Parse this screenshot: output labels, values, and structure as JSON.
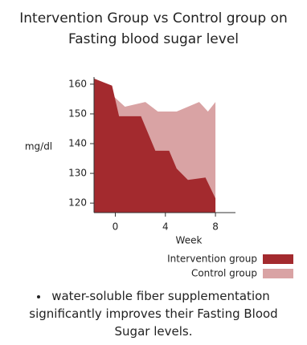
{
  "chart_data": {
    "type": "area",
    "title": "Intervention Group vs Control group on Fasting blood sugar level",
    "x_label": "Week",
    "y_label": "mg/dl",
    "xlim": [
      -1.7,
      9.6
    ],
    "xticks": [
      0,
      4,
      8
    ],
    "ylim": [
      116.8,
      162.4
    ],
    "yticks": [
      120,
      130,
      140,
      150,
      160
    ],
    "series": [
      {
        "name": "Control group",
        "color": "#d9a3a4",
        "x": [
          -1.7,
          0.77,
          2.4,
          3.4,
          4.9,
          6.7,
          7.4,
          8
        ],
        "values": [
          162,
          152.4,
          154,
          150.8,
          150.8,
          154,
          150.8,
          154
        ]
      },
      {
        "name": "Intervention group",
        "color": "#a32a2e",
        "x": [
          -1.7,
          -0.26,
          0.3,
          2.05,
          3.2,
          4.3,
          4.9,
          5.8,
          7.2,
          8
        ],
        "values": [
          161.9,
          159.5,
          149.2,
          149.2,
          137.6,
          137.6,
          131.6,
          127.8,
          128.6,
          121.6
        ]
      }
    ],
    "note": "water-soluble fiber supplementation significantly improves their Fasting Blood Sugar levels."
  }
}
